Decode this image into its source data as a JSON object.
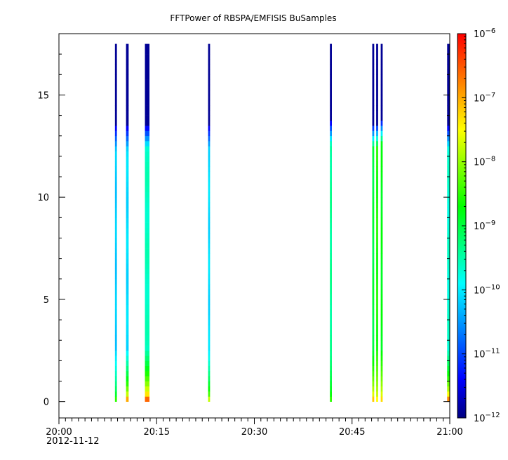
{
  "chart_data": {
    "type": "heatmap",
    "title": "FFTPower of RBSPA/EMFISIS  BuSamples",
    "xlabel": "",
    "ylabel": "",
    "x_ticks": [
      {
        "minutes": 0,
        "label": "20:00"
      },
      {
        "minutes": 15,
        "label": "20:15"
      },
      {
        "minutes": 30,
        "label": "20:30"
      },
      {
        "minutes": 45,
        "label": "20:45"
      },
      {
        "minutes": 60,
        "label": "21:00"
      }
    ],
    "x_date_label": "2012-11-12",
    "xlim": [
      "20:00",
      "21:00"
    ],
    "ylim": [
      -0.8,
      18
    ],
    "y_ticks": [
      0,
      5,
      10,
      15
    ],
    "y_tick_labels": [
      "0",
      "5",
      "10",
      "15"
    ],
    "colorbar": {
      "scale": "log",
      "min_exp": -12,
      "max_exp": -6,
      "tick_exps": [
        -12,
        -11,
        -10,
        -9,
        -8,
        -7,
        -6
      ],
      "tick_base": "10",
      "colors": [
        "#000080",
        "#0000ff",
        "#00ffff",
        "#00ff00",
        "#ffff00",
        "#ff0000"
      ]
    },
    "freq_max": 17.5,
    "bursts": [
      {
        "t_start": 8.6,
        "t_end": 8.9,
        "low_exp": -8.5,
        "mid_exp": -10.2,
        "knee": 12.2
      },
      {
        "t_start": 10.3,
        "t_end": 10.7,
        "low_exp": -7.0,
        "mid_exp": -10.1,
        "knee": 12.2
      },
      {
        "t_start": 13.2,
        "t_end": 13.9,
        "low_exp": -6.6,
        "mid_exp": -9.6,
        "knee": 12.2
      },
      {
        "t_start": 22.9,
        "t_end": 23.2,
        "low_exp": -7.8,
        "mid_exp": -10.1,
        "knee": 12.2
      },
      {
        "t_start": 41.6,
        "t_end": 41.9,
        "low_exp": -8.5,
        "mid_exp": -9.4,
        "knee": 12.4
      },
      {
        "t_start": 48.1,
        "t_end": 48.4,
        "low_exp": -7.2,
        "mid_exp": -9.0,
        "knee": 12.3
      },
      {
        "t_start": 48.7,
        "t_end": 49.0,
        "low_exp": -7.5,
        "mid_exp": -8.6,
        "knee": 12.3
      },
      {
        "t_start": 49.4,
        "t_end": 49.7,
        "low_exp": -7.3,
        "mid_exp": -8.8,
        "knee": 12.5
      },
      {
        "t_start": 59.6,
        "t_end": 60.0,
        "low_exp": -6.8,
        "mid_exp": -9.7,
        "knee": 12.2
      }
    ]
  }
}
